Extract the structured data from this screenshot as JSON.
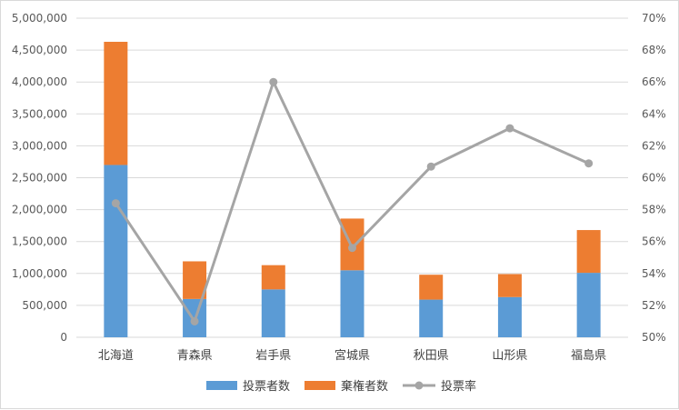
{
  "chart_data": {
    "type": "bar",
    "stacked": true,
    "categories": [
      "北海道",
      "青森県",
      "岩手県",
      "宮城県",
      "秋田県",
      "山形県",
      "福島県"
    ],
    "series": [
      {
        "name": "投票者数",
        "type": "bar",
        "axis": "left",
        "color": "#5B9BD5",
        "values": [
          2700000,
          600000,
          750000,
          1050000,
          590000,
          630000,
          1010000
        ]
      },
      {
        "name": "棄権者数",
        "type": "bar",
        "axis": "left",
        "color": "#ED7D31",
        "values": [
          1930000,
          590000,
          380000,
          810000,
          390000,
          360000,
          670000
        ]
      },
      {
        "name": "投票率",
        "type": "line",
        "axis": "right",
        "color": "#A5A5A5",
        "values": [
          58.4,
          51.0,
          66.0,
          55.6,
          60.7,
          63.1,
          60.9
        ]
      }
    ],
    "y_left": {
      "min": 0,
      "max": 5000000,
      "step": 500000,
      "tick_labels": [
        "0",
        "500,000",
        "1,000,000",
        "1,500,000",
        "2,000,000",
        "2,500,000",
        "3,000,000",
        "3,500,000",
        "4,000,000",
        "4,500,000",
        "5,000,000"
      ]
    },
    "y_right": {
      "min": 50,
      "max": 70,
      "step": 2,
      "tick_labels": [
        "50%",
        "52%",
        "54%",
        "56%",
        "58%",
        "60%",
        "62%",
        "64%",
        "66%",
        "68%",
        "70%"
      ]
    },
    "grid": true,
    "legend_position": "bottom"
  }
}
